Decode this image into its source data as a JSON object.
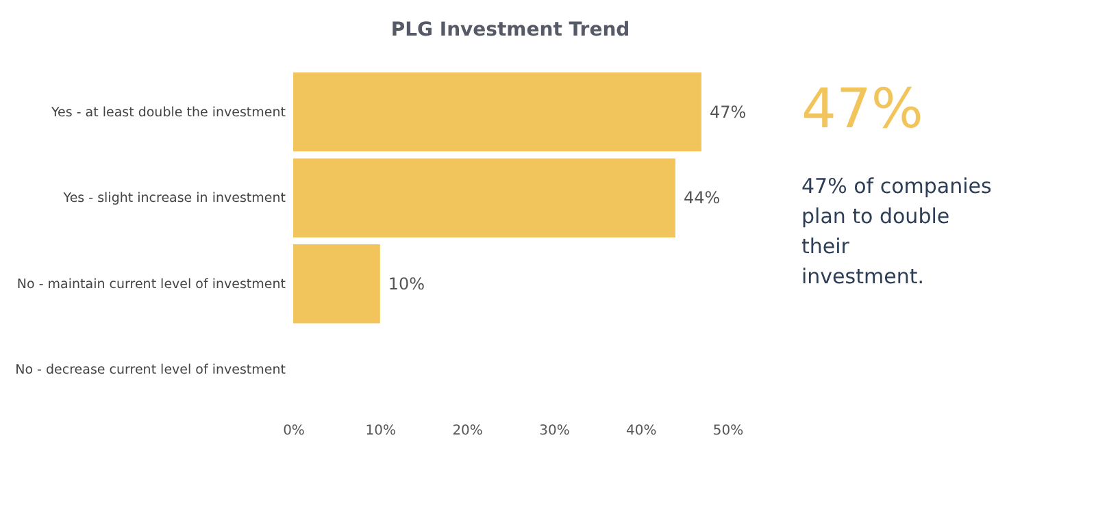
{
  "chart_data": {
    "type": "bar",
    "orientation": "horizontal",
    "title": "PLG Investment Trend",
    "categories": [
      "Yes - at least double the investment",
      "Yes - slight increase in investment",
      "No - maintain current level of investment",
      "No - decrease current level of investment"
    ],
    "values": [
      47,
      44,
      10,
      0
    ],
    "color": "#f2c55c",
    "value_labels": [
      "47%",
      "44%",
      "10%",
      null
    ],
    "xlim": [
      0,
      50
    ],
    "xticks": [
      {
        "value": 0,
        "label": "0%"
      },
      {
        "value": 10,
        "label": "10%"
      },
      {
        "value": 20,
        "label": "20%"
      },
      {
        "value": 30,
        "label": "30%"
      },
      {
        "value": 40,
        "label": "40%"
      },
      {
        "value": 50,
        "label": "50%"
      }
    ],
    "grid": false,
    "annotations": [
      "47%",
      "47% of companies plan to double their investment."
    ]
  }
}
